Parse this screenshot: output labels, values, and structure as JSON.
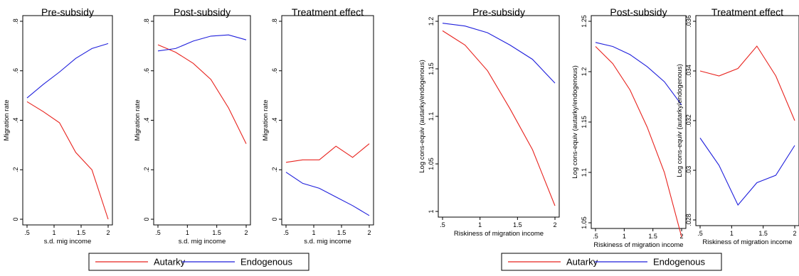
{
  "legend_groups": [
    {
      "items": [
        {
          "label": "Autarky",
          "color": "#e8231e"
        },
        {
          "label": "Endogenous",
          "color": "#1f1fdc"
        }
      ]
    },
    {
      "items": [
        {
          "label": "Autarky",
          "color": "#e8231e"
        },
        {
          "label": "Endogenous",
          "color": "#1f1fdc"
        }
      ]
    }
  ],
  "chart_data": [
    {
      "type": "line",
      "title": "Pre-subsidy",
      "xlabel": "s.d. mig income",
      "ylabel": "Migration rate",
      "xticks": [
        ".5",
        "1",
        "1.5",
        "2"
      ],
      "xtick_values": [
        0.5,
        1,
        1.5,
        2
      ],
      "yticks": [
        "0",
        ".2",
        ".4",
        ".6",
        ".8"
      ],
      "ytick_values": [
        0,
        0.2,
        0.4,
        0.6,
        0.8
      ],
      "xlim": [
        0.5,
        2
      ],
      "ylim": [
        0,
        0.8
      ],
      "x": [
        0.5,
        0.8,
        1.1,
        1.4,
        1.7,
        2.0
      ],
      "series": [
        {
          "name": "Autarky",
          "color": "#e8231e",
          "values": [
            0.475,
            0.435,
            0.39,
            0.27,
            0.2,
            0.0
          ]
        },
        {
          "name": "Endogenous",
          "color": "#1f1fdc",
          "values": [
            0.49,
            0.545,
            0.595,
            0.65,
            0.69,
            0.71
          ]
        }
      ]
    },
    {
      "type": "line",
      "title": "Post-subsidy",
      "xlabel": "s.d. mig income",
      "ylabel": "Migration rate",
      "xticks": [
        ".5",
        "1",
        "1.5",
        "2"
      ],
      "xtick_values": [
        0.5,
        1,
        1.5,
        2
      ],
      "yticks": [
        "0",
        ".2",
        ".4",
        ".6",
        ".8"
      ],
      "ytick_values": [
        0,
        0.2,
        0.4,
        0.6,
        0.8
      ],
      "xlim": [
        0.5,
        2
      ],
      "ylim": [
        0,
        0.8
      ],
      "x": [
        0.5,
        0.8,
        1.1,
        1.4,
        1.7,
        2.0
      ],
      "series": [
        {
          "name": "Autarky",
          "color": "#e8231e",
          "values": [
            0.705,
            0.675,
            0.63,
            0.565,
            0.45,
            0.305
          ]
        },
        {
          "name": "Endogenous",
          "color": "#1f1fdc",
          "values": [
            0.68,
            0.69,
            0.72,
            0.74,
            0.745,
            0.725
          ]
        }
      ]
    },
    {
      "type": "line",
      "title": "Treatment effect",
      "xlabel": "s.d. mig income",
      "ylabel": "Migration rate",
      "xticks": [
        ".5",
        "1",
        "1.5",
        "2"
      ],
      "xtick_values": [
        0.5,
        1,
        1.5,
        2
      ],
      "yticks": [
        "0",
        ".2",
        ".4",
        ".6",
        ".8"
      ],
      "ytick_values": [
        0,
        0.2,
        0.4,
        0.6,
        0.8
      ],
      "xlim": [
        0.5,
        2
      ],
      "ylim": [
        0,
        0.8
      ],
      "x": [
        0.5,
        0.8,
        1.1,
        1.4,
        1.7,
        2.0
      ],
      "series": [
        {
          "name": "Autarky",
          "color": "#e8231e",
          "values": [
            0.23,
            0.24,
            0.24,
            0.295,
            0.25,
            0.305
          ]
        },
        {
          "name": "Endogenous",
          "color": "#1f1fdc",
          "values": [
            0.19,
            0.145,
            0.125,
            0.09,
            0.055,
            0.015
          ]
        }
      ]
    },
    {
      "type": "line",
      "title": "Pre-subsidy",
      "xlabel": "Riskiness of migration income",
      "ylabel": "Log cons-equiv (autarky/endogenous)",
      "xticks": [
        ".5",
        "1",
        "1.5",
        "2"
      ],
      "xtick_values": [
        0.5,
        1,
        1.5,
        2
      ],
      "yticks": [
        "1",
        "1.05",
        "1.1",
        "1.15",
        "1.2"
      ],
      "ytick_values": [
        1,
        1.05,
        1.1,
        1.15,
        1.2
      ],
      "xlim": [
        0.5,
        2
      ],
      "ylim": [
        1,
        1.2
      ],
      "x": [
        0.5,
        0.8,
        1.1,
        1.4,
        1.7,
        2.0
      ],
      "series": [
        {
          "name": "Autarky",
          "color": "#e8231e",
          "values": [
            1.19,
            1.175,
            1.148,
            1.108,
            1.065,
            1.006
          ]
        },
        {
          "name": "Endogenous",
          "color": "#1f1fdc",
          "values": [
            1.198,
            1.195,
            1.188,
            1.175,
            1.16,
            1.135
          ]
        }
      ]
    },
    {
      "type": "line",
      "title": "Post-subsidy",
      "xlabel": "Riskiness of migration income",
      "ylabel": "Log cons-equiv (autarky/endogenous)",
      "xticks": [
        ".5",
        "1",
        "1.5",
        "2"
      ],
      "xtick_values": [
        0.5,
        1,
        1.5,
        2
      ],
      "yticks": [
        "1.05",
        "1.1",
        "1.15",
        "1.2",
        "1.25"
      ],
      "ytick_values": [
        1.05,
        1.1,
        1.15,
        1.2,
        1.25
      ],
      "xlim": [
        0.5,
        2
      ],
      "ylim": [
        1.05,
        1.25
      ],
      "x": [
        0.5,
        0.8,
        1.1,
        1.4,
        1.7,
        2.0
      ],
      "series": [
        {
          "name": "Autarky",
          "color": "#e8231e",
          "values": [
            1.225,
            1.208,
            1.182,
            1.145,
            1.1,
            1.036
          ]
        },
        {
          "name": "Endogenous",
          "color": "#1f1fdc",
          "values": [
            1.229,
            1.225,
            1.217,
            1.205,
            1.19,
            1.167
          ]
        }
      ]
    },
    {
      "type": "line",
      "title": "Treatment effect",
      "xlabel": "Riskiness of migration income",
      "ylabel": "Log cons-equiv (autarky/endogenous)",
      "xticks": [
        ".5",
        "1",
        "1.5",
        "2"
      ],
      "xtick_values": [
        0.5,
        1,
        1.5,
        2
      ],
      "yticks": [
        ".028",
        ".03",
        ".032",
        ".034",
        ".036"
      ],
      "ytick_values": [
        0.028,
        0.03,
        0.032,
        0.034,
        0.036
      ],
      "xlim": [
        0.5,
        2
      ],
      "ylim": [
        0.028,
        0.036
      ],
      "x": [
        0.5,
        0.8,
        1.1,
        1.4,
        1.7,
        2.0
      ],
      "series": [
        {
          "name": "Autarky",
          "color": "#e8231e",
          "values": [
            0.034,
            0.0338,
            0.0341,
            0.035,
            0.0338,
            0.032
          ]
        },
        {
          "name": "Endogenous",
          "color": "#1f1fdc",
          "values": [
            0.0313,
            0.0302,
            0.0286,
            0.0295,
            0.0298,
            0.031
          ]
        }
      ]
    }
  ]
}
